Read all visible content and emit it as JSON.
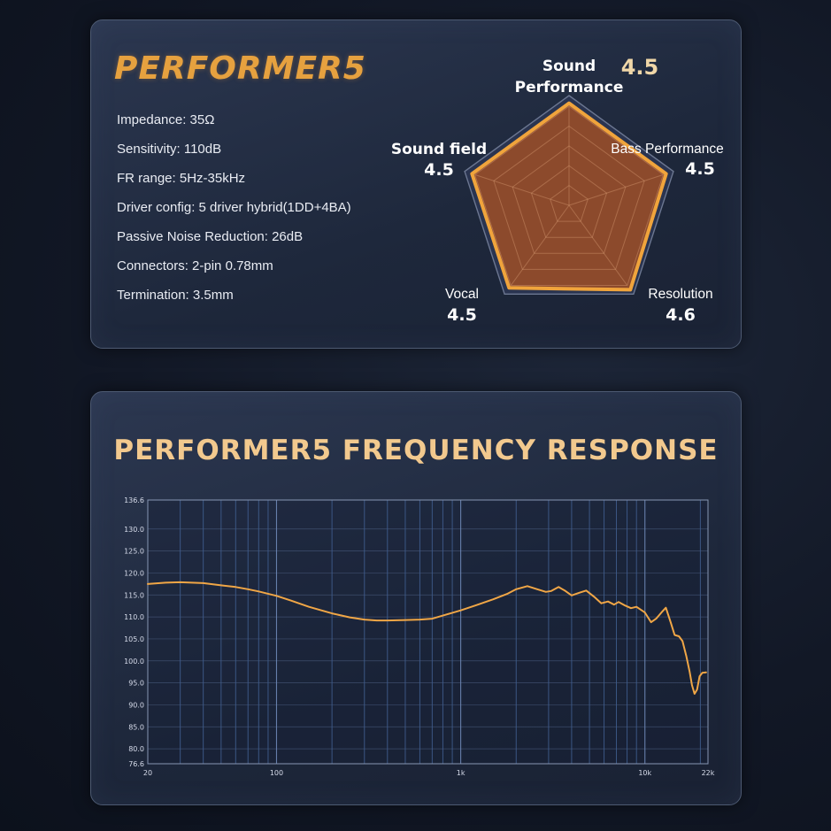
{
  "specs_panel": {
    "model_name": "PERFORMER5",
    "specs": [
      "Impedance: 35Ω",
      "Sensitivity: 110dB",
      "FR range: 5Hz-35kHz",
      "Driver config: 5 driver hybrid(1DD+4BA)",
      "Passive Noise Reduction: 26dB",
      "Connectors: 2-pin 0.78mm",
      "Termination: 3.5mm"
    ]
  },
  "colors": {
    "accent": "#e6a13f",
    "radar_fill": "#8c4a2c",
    "radar_stroke": "#f0a43c",
    "curve": "#f0a646",
    "grid": "#3f5c8c",
    "panel_border": "#4d5a72"
  },
  "chart_data": [
    {
      "type": "radar",
      "axes": [
        "Sound Performance",
        "Bass Performance",
        "Resolution",
        "Vocal",
        "Sound field"
      ],
      "axis_label_lines": [
        [
          "Sound",
          "Performance"
        ],
        [
          "Bass Performance"
        ],
        [
          "Resolution"
        ],
        [
          "Vocal"
        ],
        [
          "Sound field"
        ]
      ],
      "values": [
        4.5,
        4.5,
        4.6,
        4.5,
        4.5
      ],
      "value_labels": [
        "4.5",
        "4.5",
        "4.6",
        "4.5",
        "4.5"
      ],
      "max": 5,
      "rings": 5
    },
    {
      "type": "line",
      "title": "PERFORMER5  FREQUENCY RESPONSE",
      "x_scale": "log",
      "xlim": [
        20,
        22000
      ],
      "ylim": [
        76.6,
        136.6
      ],
      "x_tick_labels": [
        {
          "value": 20,
          "label": "20"
        },
        {
          "value": 100,
          "label": "100"
        },
        {
          "value": 1000,
          "label": "1k"
        },
        {
          "value": 10000,
          "label": "10k"
        },
        {
          "value": 22000,
          "label": "22k"
        }
      ],
      "y_ticks": [
        76.6,
        80.0,
        85.0,
        90.0,
        95.0,
        100.0,
        105.0,
        110.0,
        115.0,
        120.0,
        125.0,
        130.0,
        136.6
      ],
      "y_tick_labels": [
        "76.6",
        "80.0",
        "85.0",
        "90.0",
        "95.0",
        "100.0",
        "105.0",
        "110.0",
        "115.0",
        "120.0",
        "125.0",
        "130.0",
        "136.6"
      ],
      "x_grid": [
        20,
        30,
        40,
        50,
        60,
        70,
        80,
        90,
        100,
        200,
        300,
        400,
        500,
        600,
        700,
        800,
        900,
        1000,
        2000,
        3000,
        4000,
        5000,
        6000,
        7000,
        8000,
        9000,
        10000,
        20000
      ],
      "y_grid": [
        80,
        85,
        90,
        95,
        100,
        105,
        110,
        115,
        120,
        125,
        130
      ],
      "grid": true,
      "series": [
        {
          "points": [
            [
              20,
              117.5
            ],
            [
              25,
              117.8
            ],
            [
              30,
              117.9
            ],
            [
              40,
              117.7
            ],
            [
              50,
              117.2
            ],
            [
              60,
              116.8
            ],
            [
              70,
              116.3
            ],
            [
              80,
              115.8
            ],
            [
              100,
              114.8
            ],
            [
              120,
              113.7
            ],
            [
              150,
              112.3
            ],
            [
              200,
              110.8
            ],
            [
              250,
              109.9
            ],
            [
              300,
              109.4
            ],
            [
              350,
              109.2
            ],
            [
              400,
              109.2
            ],
            [
              500,
              109.3
            ],
            [
              600,
              109.4
            ],
            [
              700,
              109.6
            ],
            [
              800,
              110.3
            ],
            [
              1000,
              111.5
            ],
            [
              1200,
              112.6
            ],
            [
              1500,
              114.0
            ],
            [
              1800,
              115.3
            ],
            [
              2000,
              116.3
            ],
            [
              2300,
              117.0
            ],
            [
              2600,
              116.3
            ],
            [
              2900,
              115.7
            ],
            [
              3100,
              115.9
            ],
            [
              3400,
              116.8
            ],
            [
              3700,
              115.9
            ],
            [
              4000,
              114.9
            ],
            [
              4400,
              115.5
            ],
            [
              4800,
              116.0
            ],
            [
              5300,
              114.6
            ],
            [
              5800,
              113.1
            ],
            [
              6300,
              113.5
            ],
            [
              6800,
              112.8
            ],
            [
              7200,
              113.4
            ],
            [
              7800,
              112.6
            ],
            [
              8400,
              112.0
            ],
            [
              9000,
              112.3
            ],
            [
              10000,
              111.0
            ],
            [
              10800,
              108.8
            ],
            [
              11500,
              109.6
            ],
            [
              12300,
              111.0
            ],
            [
              13000,
              112.1
            ],
            [
              13800,
              108.8
            ],
            [
              14500,
              105.9
            ],
            [
              15300,
              105.6
            ],
            [
              16000,
              104.5
            ],
            [
              16800,
              101.0
            ],
            [
              17500,
              97.5
            ],
            [
              18000,
              94.5
            ],
            [
              18600,
              92.5
            ],
            [
              19200,
              93.5
            ],
            [
              19800,
              96.5
            ],
            [
              20500,
              97.3
            ],
            [
              21500,
              97.4
            ]
          ]
        }
      ]
    }
  ]
}
